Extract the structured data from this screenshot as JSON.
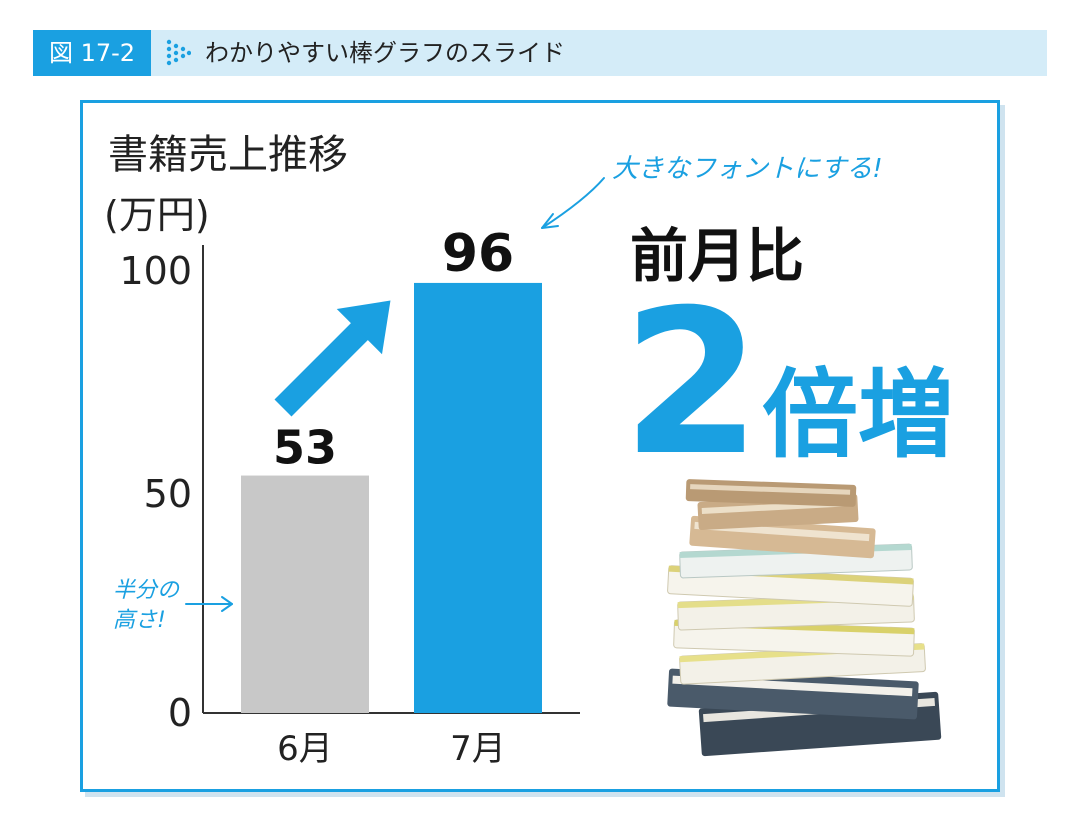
{
  "header": {
    "figure_label": "図 17-2",
    "title": "わかりやすい棒グラフのスライド"
  },
  "chart_data": {
    "type": "bar",
    "title": "書籍売上推移",
    "ylabel": "(万円)",
    "categories": [
      "6月",
      "7月"
    ],
    "values": [
      53,
      96
    ],
    "value_labels": [
      "53",
      "96"
    ],
    "ylim": [
      0,
      100
    ],
    "yticks": [
      "0",
      "50",
      "100"
    ],
    "bar_colors": [
      "#c8c8c8",
      "#1aa0e1"
    ],
    "grid": false
  },
  "annotations": {
    "comparison_label": "前月比",
    "multiplier_number": "2",
    "multiplier_suffix": "倍増",
    "font_note": "大きなフォントにする!",
    "half_note_line1": "半分の",
    "half_note_line2": "高さ!"
  },
  "colors": {
    "accent": "#1aa0e1",
    "header_bg": "#d4ecf8",
    "bar_gray": "#c8c8c8",
    "text": "#222222"
  },
  "icons": [
    "dotted-arrow-icon",
    "growth-arrow-icon",
    "annotation-arrow-icon",
    "book-stack-illustration"
  ]
}
